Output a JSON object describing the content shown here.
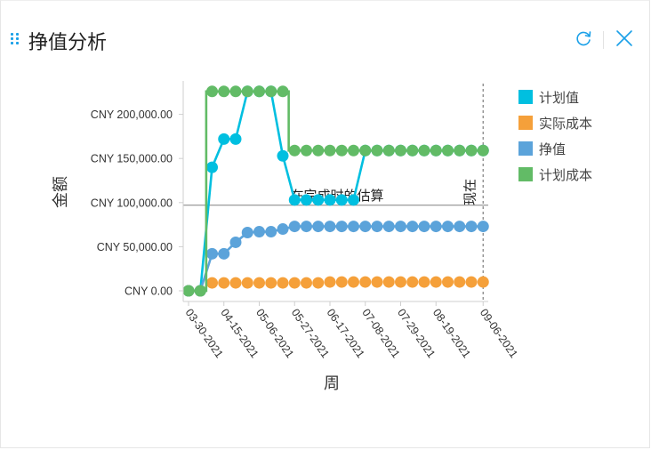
{
  "header": {
    "title": "挣值分析",
    "refresh_icon": "refresh-icon",
    "close_icon": "close-icon"
  },
  "colors": {
    "planned_value": "#00bfe0",
    "actual_cost": "#f5a03a",
    "earned_value": "#5ba3da",
    "planned_cost": "#62bb66",
    "accent": "#1aa0e8"
  },
  "chart_data": {
    "type": "line",
    "xlabel": "周",
    "ylabel": "金额",
    "ylim": [
      0,
      230000
    ],
    "yticks": [
      "CNY 0.00",
      "CNY 50,000.00",
      "CNY 100,000.00",
      "CNY 150,000.00",
      "CNY 200,000.00"
    ],
    "ytick_values": [
      0,
      50000,
      100000,
      150000,
      200000
    ],
    "x": [
      0,
      1,
      2,
      3,
      4,
      5,
      6,
      7,
      8,
      9,
      10,
      11,
      12,
      13,
      14,
      15,
      16,
      17,
      18,
      19,
      20,
      21,
      22,
      23,
      24,
      25
    ],
    "xticks": [
      "03-30-2021",
      "04-15-2021",
      "05-06-2021",
      "05-27-2021",
      "06-17-2021",
      "07-08-2021",
      "07-29-2021",
      "08-19-2021",
      "09-06-2021"
    ],
    "xtick_positions": [
      0,
      3,
      6,
      9,
      12,
      15,
      18,
      21,
      25
    ],
    "legend_position": "right",
    "series": [
      {
        "name": "计划值",
        "key": "planned_value",
        "style": "line-markers",
        "values": [
          0,
          0,
          140000,
          172000,
          172000,
          226000,
          226000,
          226000,
          153000,
          103000,
          103000,
          103000,
          103000,
          103000,
          103000,
          159000,
          159000,
          159000,
          159000,
          159000,
          159000,
          159000,
          159000,
          159000,
          159000,
          159000
        ]
      },
      {
        "name": "实际成本",
        "key": "actual_cost",
        "style": "markers",
        "values": [
          0,
          0,
          9000,
          9000,
          9000,
          9000,
          9000,
          9000,
          9000,
          9000,
          9000,
          9000,
          10000,
          10000,
          10000,
          10000,
          10000,
          10000,
          10000,
          10000,
          10000,
          10000,
          10000,
          10000,
          10000,
          10000
        ]
      },
      {
        "name": "挣值",
        "key": "earned_value",
        "style": "line-markers",
        "values": [
          0,
          0,
          42000,
          42000,
          55000,
          66000,
          67000,
          67000,
          70000,
          73000,
          73000,
          73000,
          73000,
          73000,
          73000,
          73000,
          73000,
          73000,
          73000,
          73000,
          73000,
          73000,
          73000,
          73000,
          73000,
          73000
        ]
      },
      {
        "name": "计划成本",
        "key": "planned_cost",
        "style": "step-markers",
        "values": [
          0,
          0,
          226000,
          226000,
          226000,
          226000,
          226000,
          226000,
          226000,
          159000,
          159000,
          159000,
          159000,
          159000,
          159000,
          159000,
          159000,
          159000,
          159000,
          159000,
          159000,
          159000,
          159000,
          159000,
          159000,
          159000
        ]
      }
    ],
    "annotations": [
      {
        "text": "在完成时的估算",
        "kind": "horizontal-line",
        "y": 97000
      },
      {
        "text": "现在",
        "kind": "vertical-line",
        "x": 25
      }
    ]
  }
}
